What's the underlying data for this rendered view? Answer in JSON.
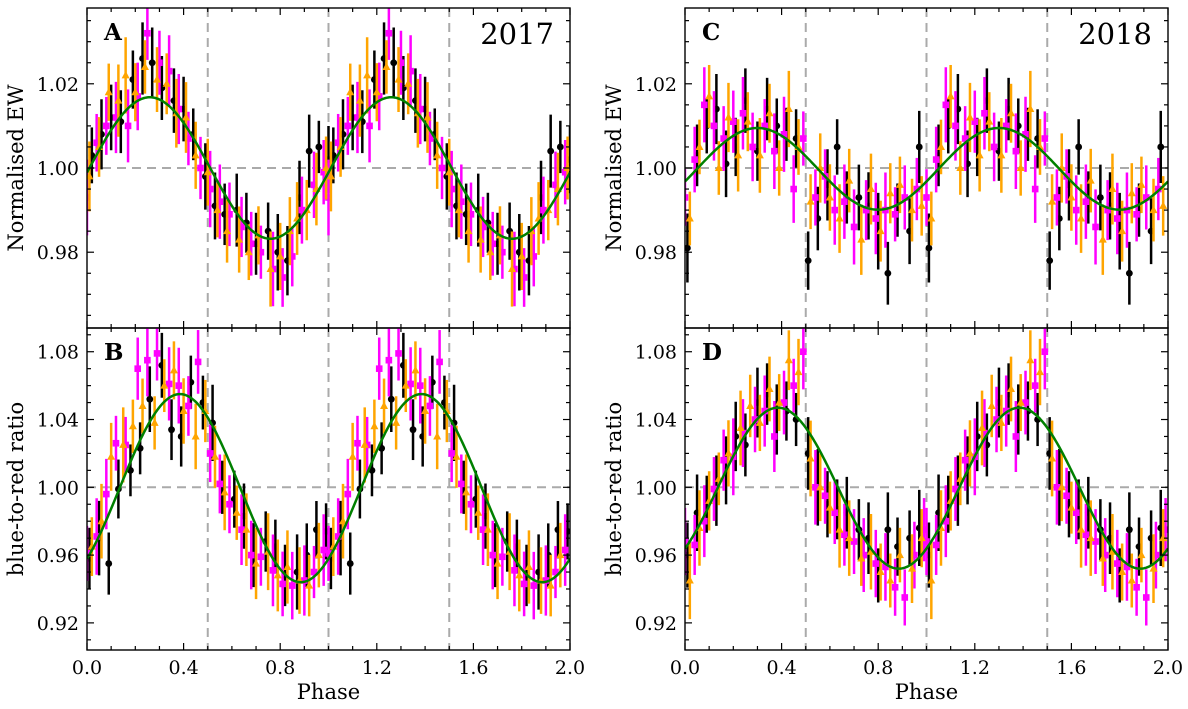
{
  "chart_data": {
    "type": "scatter",
    "x_values_label": "Phase",
    "xlim": [
      0,
      2
    ],
    "x_ticks": [
      "0.0",
      "0.4",
      "0.8",
      "1.2",
      "1.6",
      "2.0"
    ],
    "reference_phases": [
      0.5,
      1.0,
      1.5
    ],
    "grid": false,
    "colors": {
      "black": "#000000",
      "magenta": "#ff00ff",
      "orange": "#ffa500",
      "fit": "#008000",
      "reference": "#aaaaaa"
    },
    "panels": [
      {
        "letter": "A",
        "year": "2017",
        "ylabel": "Normalised EW",
        "ylim": [
          0.962,
          1.038
        ],
        "y_ticks": [
          "0.98",
          "1.00",
          "1.02"
        ],
        "reference_y": 1.0,
        "fit": {
          "mean": 1.0,
          "amplitude": 0.0168,
          "peak_phase": 0.26
        },
        "series": [
          {
            "marker": "circle",
            "color": "#000000",
            "x": [
              0.02,
              0.06,
              0.1,
              0.14,
              0.19,
              0.23,
              0.27,
              0.31,
              0.36,
              0.4,
              0.44,
              0.49,
              0.53,
              0.57,
              0.62,
              0.66,
              0.7,
              0.75,
              0.79,
              0.83,
              0.88,
              0.92,
              0.96,
              1.0
            ],
            "y": [
              1.003,
              1.008,
              1.012,
              1.011,
              1.021,
              1.026,
              1.025,
              1.019,
              1.016,
              1.014,
              1.008,
              0.998,
              0.991,
              0.989,
              0.99,
              0.987,
              0.982,
              0.985,
              0.98,
              0.978,
              0.993,
              1.004,
              1.005,
              1.002
            ]
          },
          {
            "marker": "square",
            "color": "#ff00ff",
            "x": [
              0.0,
              0.04,
              0.08,
              0.12,
              0.17,
              0.21,
              0.25,
              0.3,
              0.34,
              0.38,
              0.42,
              0.47,
              0.51,
              0.55,
              0.59,
              0.64,
              0.68,
              0.72,
              0.77,
              0.81,
              0.85,
              0.89,
              0.94,
              0.98
            ],
            "y": [
              0.993,
              1.006,
              1.01,
              1.012,
              1.01,
              1.017,
              1.032,
              1.025,
              1.023,
              1.014,
              1.007,
              1.0,
              0.995,
              0.992,
              0.989,
              0.986,
              0.982,
              0.98,
              0.976,
              0.974,
              0.979,
              0.99,
              0.996,
              0.999
            ]
          },
          {
            "marker": "triangle",
            "color": "#ffa500",
            "x": [
              0.01,
              0.05,
              0.09,
              0.13,
              0.16,
              0.2,
              0.24,
              0.29,
              0.33,
              0.37,
              0.41,
              0.45,
              0.5,
              0.54,
              0.58,
              0.63,
              0.67,
              0.71,
              0.76,
              0.8,
              0.84,
              0.87,
              0.91,
              0.95,
              0.99
            ],
            "y": [
              0.998,
              1.005,
              1.018,
              1.016,
              1.022,
              1.018,
              1.024,
              1.021,
              1.02,
              1.013,
              1.012,
              1.003,
              0.999,
              0.99,
              0.985,
              0.983,
              0.98,
              0.984,
              0.976,
              0.979,
              0.985,
              0.988,
              0.99,
              0.995,
              1.0
            ]
          }
        ]
      },
      {
        "letter": "B",
        "year": "",
        "ylabel": "blue-to-red ratio",
        "ylim": [
          0.904,
          1.094
        ],
        "y_ticks": [
          "0.92",
          "0.96",
          "1.00",
          "1.04",
          "1.08"
        ],
        "reference_y": 1.0,
        "fit": {
          "mean": 0.9995,
          "amplitude": 0.0555,
          "peak_phase": 0.385
        },
        "series": [
          {
            "marker": "circle",
            "color": "#000000",
            "x": [
              0.01,
              0.05,
              0.09,
              0.13,
              0.18,
              0.22,
              0.26,
              0.31,
              0.35,
              0.39,
              0.43,
              0.48,
              0.52,
              0.56,
              0.61,
              0.65,
              0.69,
              0.74,
              0.78,
              0.82,
              0.87,
              0.91,
              0.95,
              0.99
            ],
            "y": [
              0.958,
              0.97,
              0.955,
              0.999,
              1.01,
              1.023,
              1.052,
              1.072,
              1.034,
              1.03,
              1.062,
              1.05,
              1.038,
              1.0,
              0.993,
              0.983,
              0.96,
              0.968,
              0.965,
              0.948,
              0.95,
              0.96,
              0.975,
              0.974
            ]
          },
          {
            "marker": "square",
            "color": "#ff00ff",
            "x": [
              0.0,
              0.04,
              0.08,
              0.12,
              0.16,
              0.21,
              0.25,
              0.29,
              0.34,
              0.38,
              0.42,
              0.46,
              0.51,
              0.55,
              0.59,
              0.64,
              0.68,
              0.72,
              0.77,
              0.81,
              0.85,
              0.9,
              0.94,
              0.98
            ],
            "y": [
              0.961,
              0.971,
              0.996,
              1.026,
              1.025,
              1.07,
              1.075,
              1.079,
              1.061,
              1.06,
              1.048,
              1.074,
              1.02,
              1.002,
              0.99,
              0.975,
              0.96,
              0.959,
              0.951,
              0.943,
              0.942,
              0.945,
              0.95,
              0.963
            ]
          },
          {
            "marker": "triangle",
            "color": "#ffa500",
            "x": [
              0.02,
              0.06,
              0.1,
              0.15,
              0.19,
              0.23,
              0.28,
              0.32,
              0.36,
              0.4,
              0.45,
              0.49,
              0.53,
              0.57,
              0.62,
              0.66,
              0.7,
              0.75,
              0.79,
              0.83,
              0.88,
              0.92,
              0.96
            ],
            "y": [
              0.965,
              0.98,
              1.018,
              1.025,
              1.036,
              1.048,
              1.038,
              1.06,
              1.069,
              1.045,
              1.03,
              1.045,
              1.018,
              0.997,
              0.985,
              0.975,
              0.955,
              0.962,
              0.948,
              0.953,
              0.945,
              0.942,
              0.96
            ]
          }
        ]
      },
      {
        "letter": "C",
        "year": "2018",
        "ylabel": "Normalised EW",
        "ylim": [
          0.962,
          1.038
        ],
        "y_ticks": [
          "0.98",
          "1.00",
          "1.02"
        ],
        "reference_y": 1.0,
        "fit": {
          "mean": 0.9998,
          "amplitude": 0.0097,
          "peak_phase": 0.3
        },
        "series": [
          {
            "marker": "circle",
            "color": "#000000",
            "x": [
              0.01,
              0.05,
              0.09,
              0.13,
              0.17,
              0.21,
              0.25,
              0.3,
              0.34,
              0.38,
              0.42,
              0.46,
              0.51,
              0.55,
              0.59,
              0.63,
              0.67,
              0.72,
              0.76,
              0.8,
              0.84,
              0.88,
              0.93,
              0.97
            ],
            "y": [
              0.981,
              1.003,
              1.01,
              1.014,
              1.001,
              1.005,
              1.016,
              1.004,
              1.014,
              1.01,
              1.008,
              1.007,
              0.978,
              0.988,
              0.996,
              1.005,
              0.993,
              0.993,
              0.991,
              0.985,
              0.975,
              0.99,
              0.985,
              1.005
            ]
          },
          {
            "marker": "square",
            "color": "#ff00ff",
            "x": [
              0.0,
              0.04,
              0.08,
              0.12,
              0.16,
              0.2,
              0.24,
              0.28,
              0.33,
              0.37,
              0.41,
              0.45,
              0.49,
              0.54,
              0.58,
              0.62,
              0.66,
              0.7,
              0.75,
              0.79,
              0.83,
              0.87,
              0.91,
              0.96
            ],
            "y": [
              0.993,
              1.002,
              1.015,
              1.01,
              1.007,
              1.011,
              1.013,
              1.005,
              1.01,
              1.004,
              1.008,
              0.995,
              1.007,
              0.993,
              0.998,
              0.99,
              0.992,
              0.986,
              0.99,
              0.988,
              0.99,
              0.989,
              0.993,
              0.995
            ]
          },
          {
            "marker": "triangle",
            "color": "#ffa500",
            "x": [
              0.02,
              0.06,
              0.1,
              0.14,
              0.18,
              0.22,
              0.26,
              0.31,
              0.35,
              0.39,
              0.43,
              0.47,
              0.52,
              0.56,
              0.6,
              0.64,
              0.68,
              0.73,
              0.77,
              0.81,
              0.85,
              0.89,
              0.94,
              0.98
            ],
            "y": [
              0.988,
              1.005,
              1.017,
              1.0,
              1.012,
              1.003,
              1.011,
              1.003,
              1.013,
              1.0,
              1.014,
              1.005,
              0.992,
              1.0,
              0.993,
              0.988,
              0.997,
              0.983,
              0.995,
              0.985,
              0.994,
              0.996,
              0.99,
              0.991
            ]
          }
        ]
      },
      {
        "letter": "D",
        "year": "",
        "ylabel": "blue-to-red ratio",
        "ylim": [
          0.904,
          1.094
        ],
        "y_ticks": [
          "0.92",
          "0.96",
          "1.00",
          "1.04",
          "1.08"
        ],
        "reference_y": 1.0,
        "fit": {
          "mean": 0.9995,
          "amplitude": 0.0475,
          "peak_phase": 0.385
        },
        "series": [
          {
            "marker": "circle",
            "color": "#000000",
            "x": [
              0.01,
              0.05,
              0.09,
              0.13,
              0.17,
              0.21,
              0.25,
              0.3,
              0.34,
              0.38,
              0.42,
              0.46,
              0.51,
              0.55,
              0.59,
              0.63,
              0.67,
              0.72,
              0.76,
              0.8,
              0.84,
              0.88,
              0.93,
              0.97
            ],
            "y": [
              0.96,
              0.985,
              0.99,
              0.998,
              1.01,
              1.03,
              1.025,
              1.05,
              1.055,
              1.04,
              1.045,
              1.04,
              1.02,
              1.0,
              0.99,
              0.987,
              0.985,
              0.975,
              0.97,
              0.948,
              0.975,
              0.965,
              0.97,
              0.976
            ]
          },
          {
            "marker": "square",
            "color": "#ff00ff",
            "x": [
              0.0,
              0.04,
              0.08,
              0.12,
              0.16,
              0.2,
              0.24,
              0.29,
              0.33,
              0.37,
              0.41,
              0.45,
              0.49,
              0.54,
              0.58,
              0.62,
              0.66,
              0.7,
              0.74,
              0.79,
              0.83,
              0.87,
              0.91,
              0.95,
              0.99
            ],
            "y": [
              0.968,
              0.966,
              0.98,
              0.999,
              1.016,
              1.018,
              1.032,
              1.04,
              1.045,
              1.03,
              1.05,
              1.06,
              1.08,
              1.0,
              0.995,
              0.985,
              0.972,
              0.968,
              0.96,
              0.955,
              0.953,
              0.941,
              0.935,
              0.96,
              0.975
            ]
          },
          {
            "marker": "triangle",
            "color": "#ffa500",
            "x": [
              0.02,
              0.06,
              0.1,
              0.14,
              0.18,
              0.23,
              0.27,
              0.31,
              0.35,
              0.39,
              0.43,
              0.47,
              0.52,
              0.56,
              0.6,
              0.64,
              0.68,
              0.73,
              0.77,
              0.81,
              0.85,
              0.89,
              0.94,
              0.98
            ],
            "y": [
              0.945,
              0.976,
              0.992,
              1.005,
              1.02,
              1.035,
              1.048,
              1.038,
              1.058,
              1.05,
              1.075,
              1.068,
              1.017,
              1.0,
              0.988,
              0.975,
              0.97,
              0.958,
              0.962,
              0.95,
              0.945,
              0.96,
              0.952,
              0.97
            ]
          }
        ]
      }
    ]
  }
}
